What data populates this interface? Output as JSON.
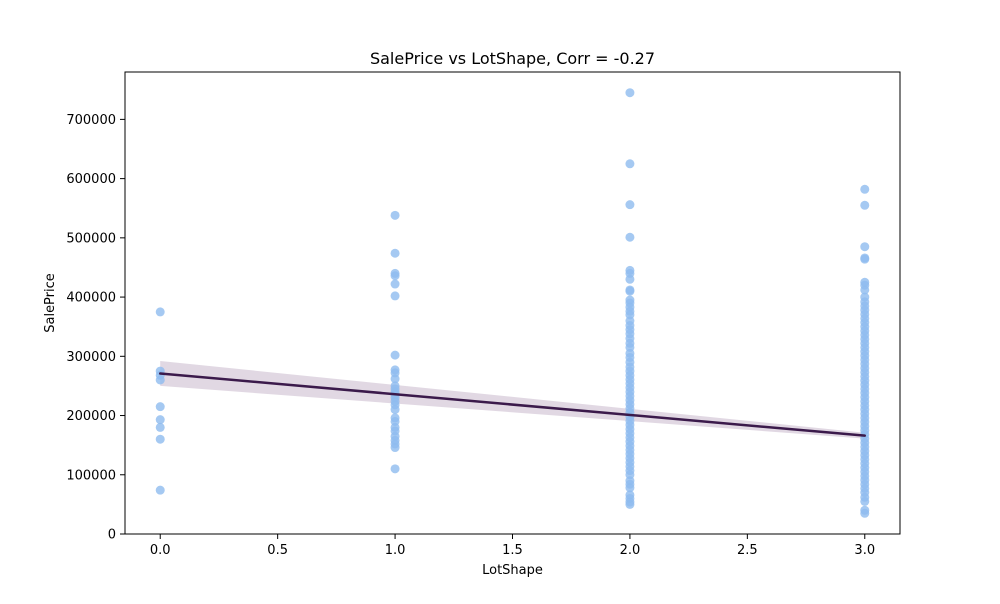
{
  "chart_data": {
    "type": "scatter",
    "title": "SalePrice vs LotShape, Corr = -0.27",
    "xlabel": "LotShape",
    "ylabel": "SalePrice",
    "xlim": [
      -0.15,
      3.15
    ],
    "ylim": [
      0,
      780000
    ],
    "x_ticks": [
      0.0,
      0.5,
      1.0,
      1.5,
      2.0,
      2.5,
      3.0
    ],
    "x_tick_labels": [
      "0.0",
      "0.5",
      "1.0",
      "1.5",
      "2.0",
      "2.5",
      "3.0"
    ],
    "y_ticks": [
      0,
      100000,
      200000,
      300000,
      400000,
      500000,
      600000,
      700000
    ],
    "y_tick_labels": [
      "0",
      "100000",
      "200000",
      "300000",
      "400000",
      "500000",
      "600000",
      "700000"
    ],
    "grid": false,
    "colors": {
      "points": "#8fbbef",
      "line": "#3b1a4b",
      "band": "#c9b8cc"
    },
    "regression": {
      "x": [
        0,
        3
      ],
      "y": [
        271000,
        166000
      ],
      "ci_lower": [
        250000,
        161000
      ],
      "ci_upper": [
        292000,
        171000
      ]
    },
    "points": [
      {
        "x": 0,
        "y": 375000
      },
      {
        "x": 0,
        "y": 275000
      },
      {
        "x": 0,
        "y": 268000
      },
      {
        "x": 0,
        "y": 260000
      },
      {
        "x": 0,
        "y": 215000
      },
      {
        "x": 0,
        "y": 193000
      },
      {
        "x": 0,
        "y": 180000
      },
      {
        "x": 0,
        "y": 160000
      },
      {
        "x": 0,
        "y": 74000
      },
      {
        "x": 1,
        "y": 538000
      },
      {
        "x": 1,
        "y": 474000
      },
      {
        "x": 1,
        "y": 440000
      },
      {
        "x": 1,
        "y": 436000
      },
      {
        "x": 1,
        "y": 422000
      },
      {
        "x": 1,
        "y": 402000
      },
      {
        "x": 1,
        "y": 302000
      },
      {
        "x": 1,
        "y": 277000
      },
      {
        "x": 1,
        "y": 272000
      },
      {
        "x": 1,
        "y": 262000
      },
      {
        "x": 1,
        "y": 250000
      },
      {
        "x": 1,
        "y": 245000
      },
      {
        "x": 1,
        "y": 240000
      },
      {
        "x": 1,
        "y": 235000
      },
      {
        "x": 1,
        "y": 230000
      },
      {
        "x": 1,
        "y": 224000
      },
      {
        "x": 1,
        "y": 218000
      },
      {
        "x": 1,
        "y": 210000
      },
      {
        "x": 1,
        "y": 196000
      },
      {
        "x": 1,
        "y": 190000
      },
      {
        "x": 1,
        "y": 180000
      },
      {
        "x": 1,
        "y": 174000
      },
      {
        "x": 1,
        "y": 165000
      },
      {
        "x": 1,
        "y": 158000
      },
      {
        "x": 1,
        "y": 152000
      },
      {
        "x": 1,
        "y": 146000
      },
      {
        "x": 1,
        "y": 110000
      },
      {
        "x": 2,
        "y": 745000
      },
      {
        "x": 2,
        "y": 625000
      },
      {
        "x": 2,
        "y": 556000
      },
      {
        "x": 2,
        "y": 501000
      },
      {
        "x": 2,
        "y": 445000
      },
      {
        "x": 2,
        "y": 440000
      },
      {
        "x": 2,
        "y": 430000
      },
      {
        "x": 2,
        "y": 412000
      },
      {
        "x": 2,
        "y": 410000
      },
      {
        "x": 2,
        "y": 395000
      },
      {
        "x": 2,
        "y": 390000
      },
      {
        "x": 2,
        "y": 383000
      },
      {
        "x": 2,
        "y": 376000
      },
      {
        "x": 2,
        "y": 370000
      },
      {
        "x": 2,
        "y": 360000
      },
      {
        "x": 2,
        "y": 352000
      },
      {
        "x": 2,
        "y": 345000
      },
      {
        "x": 2,
        "y": 338000
      },
      {
        "x": 2,
        "y": 330000
      },
      {
        "x": 2,
        "y": 322000
      },
      {
        "x": 2,
        "y": 315000
      },
      {
        "x": 2,
        "y": 305000
      },
      {
        "x": 2,
        "y": 298000
      },
      {
        "x": 2,
        "y": 290000
      },
      {
        "x": 2,
        "y": 282000
      },
      {
        "x": 2,
        "y": 275000
      },
      {
        "x": 2,
        "y": 268000
      },
      {
        "x": 2,
        "y": 261000
      },
      {
        "x": 2,
        "y": 254000
      },
      {
        "x": 2,
        "y": 247000
      },
      {
        "x": 2,
        "y": 240000
      },
      {
        "x": 2,
        "y": 233000
      },
      {
        "x": 2,
        "y": 226000
      },
      {
        "x": 2,
        "y": 219000
      },
      {
        "x": 2,
        "y": 212000
      },
      {
        "x": 2,
        "y": 205000
      },
      {
        "x": 2,
        "y": 198000
      },
      {
        "x": 2,
        "y": 191000
      },
      {
        "x": 2,
        "y": 184000
      },
      {
        "x": 2,
        "y": 177000
      },
      {
        "x": 2,
        "y": 170000
      },
      {
        "x": 2,
        "y": 163000
      },
      {
        "x": 2,
        "y": 156000
      },
      {
        "x": 2,
        "y": 149000
      },
      {
        "x": 2,
        "y": 142000
      },
      {
        "x": 2,
        "y": 135000
      },
      {
        "x": 2,
        "y": 128000
      },
      {
        "x": 2,
        "y": 121000
      },
      {
        "x": 2,
        "y": 114000
      },
      {
        "x": 2,
        "y": 107000
      },
      {
        "x": 2,
        "y": 100000
      },
      {
        "x": 2,
        "y": 90000
      },
      {
        "x": 2,
        "y": 84000
      },
      {
        "x": 2,
        "y": 78000
      },
      {
        "x": 2,
        "y": 66000
      },
      {
        "x": 2,
        "y": 60000
      },
      {
        "x": 2,
        "y": 54000
      },
      {
        "x": 2,
        "y": 50000
      },
      {
        "x": 3,
        "y": 582000
      },
      {
        "x": 3,
        "y": 555000
      },
      {
        "x": 3,
        "y": 485000
      },
      {
        "x": 3,
        "y": 466000
      },
      {
        "x": 3,
        "y": 464000
      },
      {
        "x": 3,
        "y": 425000
      },
      {
        "x": 3,
        "y": 420000
      },
      {
        "x": 3,
        "y": 412000
      },
      {
        "x": 3,
        "y": 400000
      },
      {
        "x": 3,
        "y": 392000
      },
      {
        "x": 3,
        "y": 385000
      },
      {
        "x": 3,
        "y": 378000
      },
      {
        "x": 3,
        "y": 371000
      },
      {
        "x": 3,
        "y": 364000
      },
      {
        "x": 3,
        "y": 357000
      },
      {
        "x": 3,
        "y": 350000
      },
      {
        "x": 3,
        "y": 343000
      },
      {
        "x": 3,
        "y": 336000
      },
      {
        "x": 3,
        "y": 329000
      },
      {
        "x": 3,
        "y": 322000
      },
      {
        "x": 3,
        "y": 315000
      },
      {
        "x": 3,
        "y": 308000
      },
      {
        "x": 3,
        "y": 301000
      },
      {
        "x": 3,
        "y": 294000
      },
      {
        "x": 3,
        "y": 287000
      },
      {
        "x": 3,
        "y": 280000
      },
      {
        "x": 3,
        "y": 273000
      },
      {
        "x": 3,
        "y": 266000
      },
      {
        "x": 3,
        "y": 259000
      },
      {
        "x": 3,
        "y": 252000
      },
      {
        "x": 3,
        "y": 245000
      },
      {
        "x": 3,
        "y": 238000
      },
      {
        "x": 3,
        "y": 231000
      },
      {
        "x": 3,
        "y": 224000
      },
      {
        "x": 3,
        "y": 217000
      },
      {
        "x": 3,
        "y": 210000
      },
      {
        "x": 3,
        "y": 203000
      },
      {
        "x": 3,
        "y": 196000
      },
      {
        "x": 3,
        "y": 189000
      },
      {
        "x": 3,
        "y": 182000
      },
      {
        "x": 3,
        "y": 175000
      },
      {
        "x": 3,
        "y": 168000
      },
      {
        "x": 3,
        "y": 161000
      },
      {
        "x": 3,
        "y": 154000
      },
      {
        "x": 3,
        "y": 147000
      },
      {
        "x": 3,
        "y": 140000
      },
      {
        "x": 3,
        "y": 133000
      },
      {
        "x": 3,
        "y": 126000
      },
      {
        "x": 3,
        "y": 119000
      },
      {
        "x": 3,
        "y": 112000
      },
      {
        "x": 3,
        "y": 105000
      },
      {
        "x": 3,
        "y": 98000
      },
      {
        "x": 3,
        "y": 91000
      },
      {
        "x": 3,
        "y": 84000
      },
      {
        "x": 3,
        "y": 77000
      },
      {
        "x": 3,
        "y": 70000
      },
      {
        "x": 3,
        "y": 62000
      },
      {
        "x": 3,
        "y": 55000
      },
      {
        "x": 3,
        "y": 40000
      },
      {
        "x": 3,
        "y": 35000
      }
    ]
  }
}
